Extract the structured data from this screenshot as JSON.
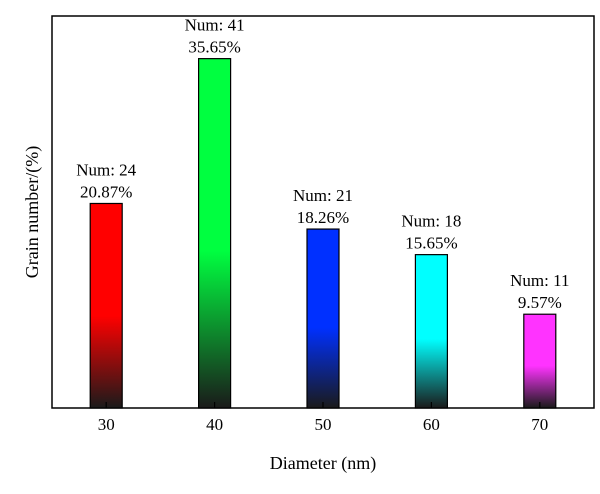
{
  "chart_data": {
    "type": "bar",
    "categories": [
      "30",
      "40",
      "50",
      "60",
      "70"
    ],
    "values": [
      20.87,
      35.65,
      18.26,
      15.65,
      9.57
    ],
    "counts": [
      24,
      41,
      21,
      18,
      11
    ],
    "data_labels": [
      {
        "num": "Num: 24",
        "percent": "20.87%"
      },
      {
        "num": "Num: 41",
        "percent": "35.65%"
      },
      {
        "num": "Num: 21",
        "percent": "18.26%"
      },
      {
        "num": "Num: 18",
        "percent": "15.65%"
      },
      {
        "num": "Num: 11",
        "percent": "9.57%"
      }
    ],
    "colors": [
      "#ff0000",
      "#00ff40",
      "#0030ff",
      "#00ffff",
      "#ff33ff"
    ],
    "bottom_color": "#1a1a1a",
    "title": "",
    "xlabel": "Diameter (nm)",
    "ylabel": "Grain number/(%)",
    "ylim": [
      0,
      40
    ],
    "grid": false,
    "legend": "none"
  }
}
